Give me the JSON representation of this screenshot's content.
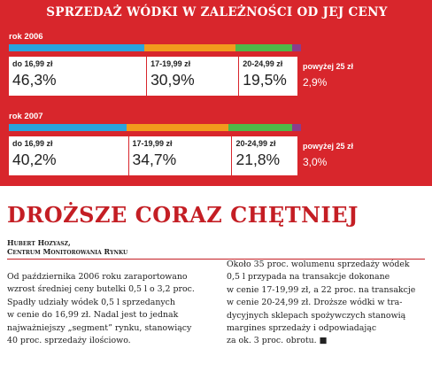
{
  "title": "SPRZEDAŻ WÓDKI W ZALEŻNOŚCI OD JEJ CENY",
  "colors": {
    "background": "#d8262c",
    "segment_1": "#2aa3dd",
    "segment_2": "#f29a1d",
    "segment_3": "#4fb848",
    "segment_4": "#8a3d8c"
  },
  "chart_data": {
    "type": "bar",
    "orientation": "horizontal",
    "stacked": true,
    "categories": [
      "do 16,99 zł",
      "17-19,99 zł",
      "20-24,99 zł",
      "powyżej 25 zł"
    ],
    "series": [
      {
        "name": "rok 2006",
        "values": [
          46.3,
          30.9,
          19.5,
          2.9
        ],
        "labels": [
          "46,3%",
          "30,9%",
          "19,5%",
          "2,9%"
        ]
      },
      {
        "name": "rok 2007",
        "values": [
          40.2,
          34.7,
          21.8,
          3.0
        ],
        "labels": [
          "40,2%",
          "34,7%",
          "21,8%",
          "3,0%"
        ]
      }
    ]
  },
  "article": {
    "headline": "DROŻSZE CORAZ CHĘTNIEJ",
    "author": "Hubert Hozyasz,",
    "affiliation": "Centrum Monitorowania Rynku",
    "col1": [
      "Od października 2006 roku zaraportowano",
      "wzrost średniej ceny butelki 0,5 l o 3,2 proc.",
      "Spadły udziały wódek 0,5 l sprzedanych",
      "w cenie do 16,99 zł. Nadal jest to jednak",
      "najważniejszy „segment” rynku, stanowiący",
      "40 proc. sprzedaży ilościowo."
    ],
    "col2": [
      "Około 35 proc. wolumenu sprzedaży wódek",
      "0,5 l przypada na transakcje dokonane",
      "w cenie 17-19,99 zł, a 22 proc. na transakcje",
      "w cenie 20-24,99 zł. Droższe wódki w tra-",
      "dycyjnych sklepach spożywczych stanowią",
      "margines sprzedaży i odpowiadając",
      "za ok. 3 proc. obrotu. ■"
    ]
  }
}
